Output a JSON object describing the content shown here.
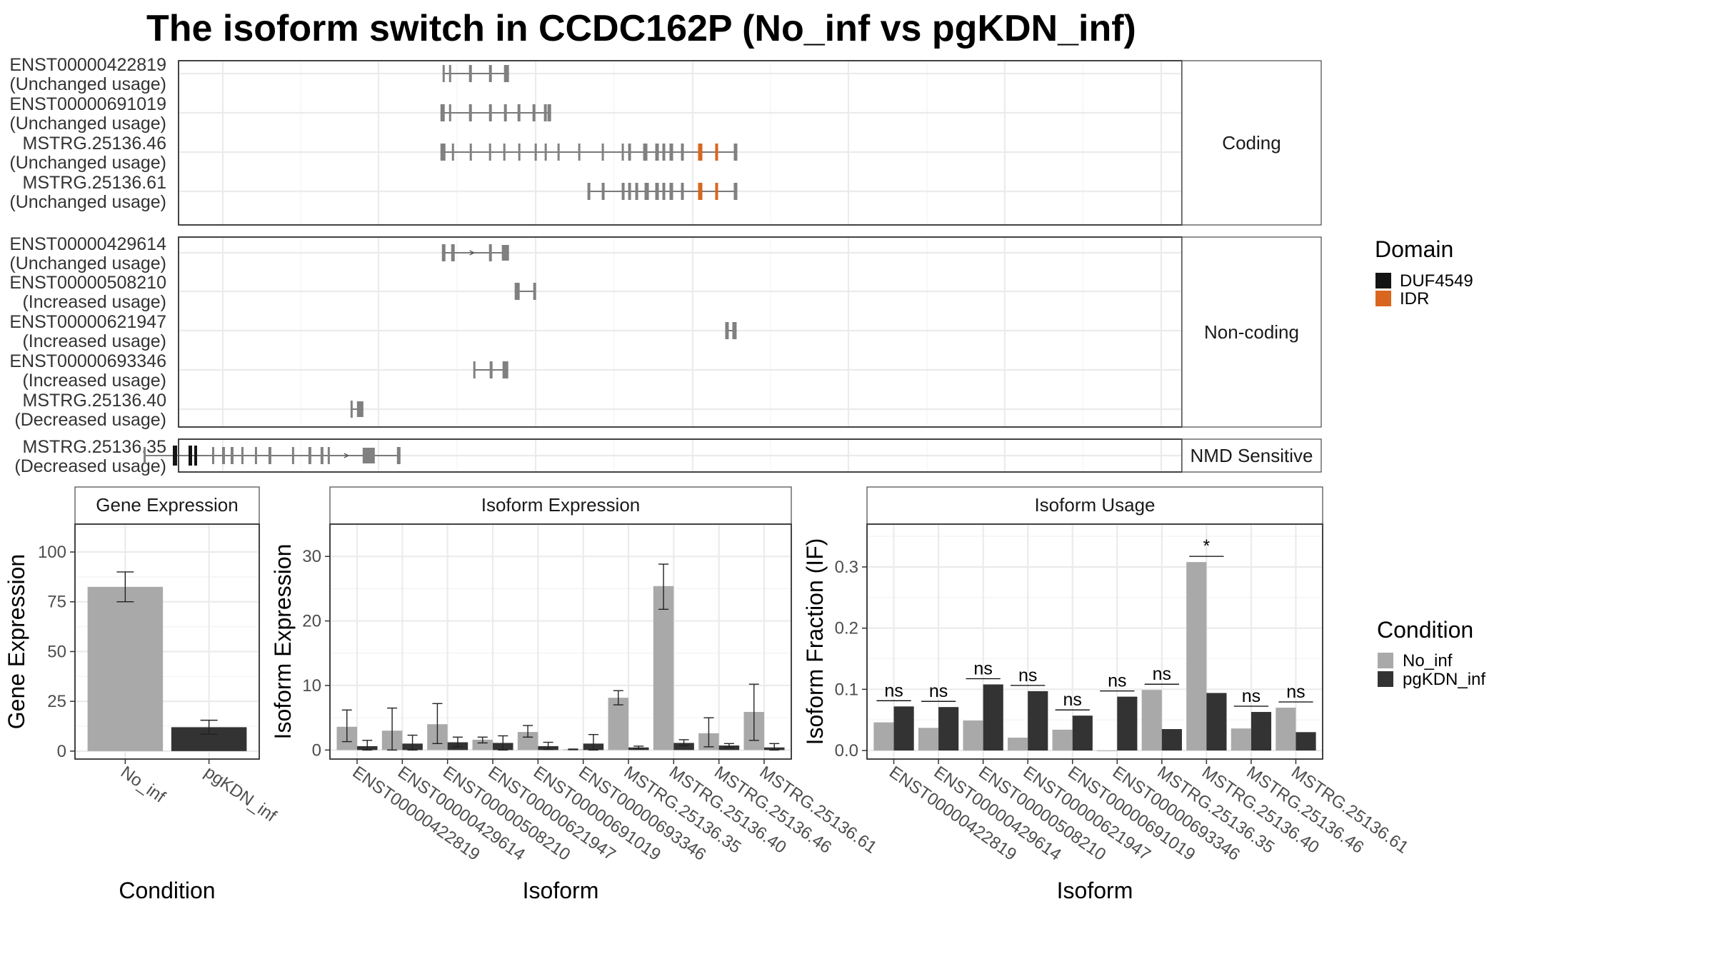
{
  "title": "The isoform switch in CCDC162P (No_inf vs pgKDN_inf)",
  "colors": {
    "No_inf": "#a9a9a9",
    "pgKDN_inf": "#333333",
    "exon": "#808080",
    "DUF4549": "#141414",
    "IDR": "#d9661f"
  },
  "structure": {
    "facets": [
      {
        "name": "Coding",
        "label": "Coding",
        "isoforms": [
          {
            "id": "ENST00000422819",
            "status": "(Unchanged usage)",
            "strand": "+",
            "exons": [
              [
                620,
                623
              ],
              [
                629,
                632
              ],
              [
                657,
                661
              ],
              [
                685,
                689
              ],
              [
                706,
                713
              ]
            ],
            "domains": []
          },
          {
            "id": "ENST00000691019",
            "status": "(Unchanged usage)",
            "strand": "+",
            "exons": [
              [
                617,
                623
              ],
              [
                629,
                632
              ],
              [
                657,
                661
              ],
              [
                685,
                689
              ],
              [
                706,
                710
              ],
              [
                725,
                729
              ],
              [
                746,
                750
              ],
              [
                762,
                766
              ],
              [
                767,
                772
              ]
            ],
            "domains": []
          },
          {
            "id": "MSTRG.25136.46",
            "status": "(Unchanged usage)",
            "strand": "+",
            "exons": [
              [
                617,
                624
              ],
              [
                633,
                636
              ],
              [
                658,
                661
              ],
              [
                685,
                688
              ],
              [
                705,
                708
              ],
              [
                726,
                729
              ],
              [
                749,
                752
              ],
              [
                763,
                766
              ],
              [
                781,
                784
              ],
              [
                810,
                813
              ],
              [
                843,
                846
              ],
              [
                871,
                874
              ],
              [
                880,
                884
              ],
              [
                901,
                907
              ],
              [
                918,
                923
              ],
              [
                928,
                932
              ],
              [
                938,
                943
              ],
              [
                954,
                958
              ],
              [
                978,
                984
              ],
              [
                1002,
                1006
              ],
              [
                1028,
                1033
              ]
            ],
            "domains": [
              {
                "type": "IDR",
                "range": [
                  978,
                  984
                ]
              },
              {
                "type": "IDR",
                "range": [
                  1002,
                  1006
                ]
              }
            ]
          },
          {
            "id": "MSTRG.25136.61",
            "status": "(Unchanged usage)",
            "strand": "+",
            "exons": [
              [
                823,
                827
              ],
              [
                843,
                847
              ],
              [
                871,
                875
              ],
              [
                880,
                884
              ],
              [
                890,
                894
              ],
              [
                903,
                909
              ],
              [
                918,
                923
              ],
              [
                928,
                932
              ],
              [
                938,
                943
              ],
              [
                954,
                958
              ],
              [
                978,
                984
              ],
              [
                1002,
                1006
              ],
              [
                1028,
                1033
              ]
            ],
            "domains": [
              {
                "type": "IDR",
                "range": [
                  978,
                  984
                ]
              },
              {
                "type": "IDR",
                "range": [
                  1002,
                  1006
                ]
              }
            ]
          }
        ]
      },
      {
        "name": "Non-coding",
        "label": "Non-coding",
        "isoforms": [
          {
            "id": "ENST00000429614",
            "status": "(Unchanged usage)",
            "strand": "+",
            "exons": [
              [
                619,
                624
              ],
              [
                632,
                637
              ],
              [
                685,
                689
              ],
              [
                703,
                713
              ]
            ],
            "domains": []
          },
          {
            "id": "ENST00000508210",
            "status": "(Increased usage)",
            "strand": "+",
            "exons": [
              [
                721,
                728
              ],
              [
                747,
                751
              ]
            ],
            "domains": []
          },
          {
            "id": "ENST00000621947",
            "status": "(Increased usage)",
            "strand": "+",
            "exons": [
              [
                1016,
                1021
              ],
              [
                1026,
                1032
              ]
            ],
            "domains": []
          },
          {
            "id": "ENST00000693346",
            "status": "(Increased usage)",
            "strand": "+",
            "exons": [
              [
                663,
                666
              ],
              [
                686,
                690
              ],
              [
                704,
                712
              ]
            ],
            "domains": []
          },
          {
            "id": "MSTRG.25136.40",
            "status": "(Decreased usage)",
            "strand": "+",
            "exons": [
              [
                491,
                493
              ],
              [
                500,
                509
              ]
            ],
            "domains": []
          }
        ]
      },
      {
        "name": "NMD Sensitive",
        "label": "NMD Sensitive",
        "isoforms": [
          {
            "id": "MSTRG.25136.35",
            "status": "(Decreased usage)",
            "strand": "+",
            "exons": [
              [
                201,
                204
              ],
              [
                242,
                248
              ],
              [
                264,
                269
              ],
              [
                272,
                276
              ],
              [
                297,
                300
              ],
              [
                311,
                315
              ],
              [
                323,
                327
              ],
              [
                338,
                341
              ],
              [
                357,
                360
              ],
              [
                376,
                380
              ],
              [
                409,
                412
              ],
              [
                432,
                436
              ],
              [
                449,
                453
              ],
              [
                459,
                462
              ],
              [
                508,
                525
              ],
              [
                556,
                561
              ]
            ],
            "domains": [
              {
                "type": "DUF4549",
                "range": [
                  242,
                  248
                ]
              },
              {
                "type": "DUF4549",
                "range": [
                  264,
                  269
                ]
              },
              {
                "type": "DUF4549",
                "range": [
                  272,
                  276
                ]
              }
            ]
          }
        ]
      }
    ],
    "legend": {
      "title": "Domain",
      "items": [
        {
          "key": "DUF4549",
          "label": "DUF4549"
        },
        {
          "key": "IDR",
          "label": "IDR"
        }
      ]
    }
  },
  "chart_data": [
    {
      "type": "bar",
      "title": "Gene Expression",
      "xlabel": "Condition",
      "ylabel": "Gene Expression",
      "categories": [
        "No_inf",
        "pgKDN_inf"
      ],
      "values": [
        82.5,
        12.0
      ],
      "errors": [
        [
          75.0,
          90.0
        ],
        [
          8.5,
          15.5
        ]
      ],
      "ylim": [
        -4,
        114
      ],
      "yticks": [
        0,
        25,
        50,
        75,
        100
      ]
    },
    {
      "type": "bar",
      "title": "Isoform Expression",
      "xlabel": "Isoform",
      "ylabel": "Isoform Expression",
      "categories": [
        "ENST00000422819",
        "ENST00000429614",
        "ENST00000508210",
        "ENST00000621947",
        "ENST00000691019",
        "ENST00000693346",
        "MSTRG.25136.35",
        "MSTRG.25136.40",
        "MSTRG.25136.46",
        "MSTRG.25136.61"
      ],
      "series": [
        {
          "name": "No_inf",
          "values": [
            3.6,
            3.0,
            4.0,
            1.6,
            2.8,
            0.1,
            8.1,
            25.4,
            2.6,
            5.9
          ],
          "errors": [
            [
              1.3,
              6.2
            ],
            [
              0.0,
              6.5
            ],
            [
              1.0,
              7.2
            ],
            [
              1.1,
              2.0
            ],
            [
              2.0,
              3.8
            ],
            [
              0.05,
              0.15
            ],
            [
              7.0,
              9.2
            ],
            [
              21.8,
              28.8
            ],
            [
              0.5,
              5.0
            ],
            [
              1.5,
              10.2
            ]
          ]
        },
        {
          "name": "pgKDN_inf",
          "values": [
            0.6,
            1.0,
            1.2,
            1.1,
            0.6,
            1.0,
            0.4,
            1.1,
            0.7,
            0.4
          ],
          "errors": [
            [
              0.0,
              1.5
            ],
            [
              0.0,
              2.3
            ],
            [
              0.5,
              2.0
            ],
            [
              0.0,
              2.2
            ],
            [
              0.1,
              1.2
            ],
            [
              0.0,
              2.4
            ],
            [
              0.2,
              0.6
            ],
            [
              0.7,
              1.6
            ],
            [
              0.4,
              1.0
            ],
            [
              0.0,
              1.0
            ]
          ]
        }
      ],
      "ylim": [
        -1.4,
        35
      ],
      "yticks": [
        0,
        10,
        20,
        30
      ]
    },
    {
      "type": "bar",
      "title": "Isoform Usage",
      "xlabel": "Isoform",
      "ylabel": "Isoform Fraction (IF)",
      "categories": [
        "ENST00000422819",
        "ENST00000429614",
        "ENST00000508210",
        "ENST00000621947",
        "ENST00000691019",
        "ENST00000693346",
        "MSTRG.25136.35",
        "MSTRG.25136.40",
        "MSTRG.25136.46",
        "MSTRG.25136.61"
      ],
      "series": [
        {
          "name": "No_inf",
          "values": [
            0.046,
            0.037,
            0.049,
            0.021,
            0.034,
            0.0,
            0.099,
            0.308,
            0.036,
            0.07
          ]
        },
        {
          "name": "pgKDN_inf",
          "values": [
            0.072,
            0.071,
            0.108,
            0.097,
            0.057,
            0.088,
            0.035,
            0.094,
            0.063,
            0.03
          ]
        }
      ],
      "significance": [
        "ns",
        "ns",
        "ns",
        "ns",
        "ns",
        "ns",
        "ns",
        "*",
        "ns",
        "ns"
      ],
      "ylim": [
        -0.014,
        0.37
      ],
      "yticks": [
        0.0,
        0.1,
        0.2,
        0.3
      ],
      "ytick_labels": [
        "0.0",
        "0.1",
        "0.2",
        "0.3"
      ]
    }
  ],
  "condition_legend": {
    "title": "Condition",
    "items": [
      {
        "key": "No_inf",
        "label": "No_inf"
      },
      {
        "key": "pgKDN_inf",
        "label": "pgKDN_inf"
      }
    ]
  }
}
